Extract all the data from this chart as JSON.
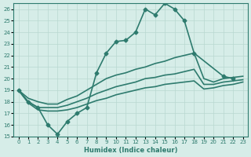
{
  "xlabel": "Humidex (Indice chaleur)",
  "xlim": [
    -0.5,
    23.5
  ],
  "ylim": [
    15,
    26.5
  ],
  "yticks": [
    15,
    16,
    17,
    18,
    19,
    20,
    21,
    22,
    23,
    24,
    25,
    26
  ],
  "xticks": [
    0,
    1,
    2,
    3,
    4,
    5,
    6,
    7,
    8,
    9,
    10,
    11,
    12,
    13,
    14,
    15,
    16,
    17,
    18,
    19,
    20,
    21,
    22,
    23
  ],
  "bg_color": "#d6ede8",
  "grid_color": "#b8d8d0",
  "line_color": "#2e7b6e",
  "lines": [
    {
      "x": [
        0,
        1,
        2,
        3,
        4,
        5,
        6,
        7,
        8,
        9,
        10,
        11,
        12,
        13,
        14,
        15,
        16,
        17,
        18,
        21,
        22
      ],
      "y": [
        19,
        18,
        17.5,
        16,
        15.2,
        16.3,
        17.0,
        17.5,
        20.5,
        22.2,
        23.2,
        23.3,
        24.0,
        26.0,
        25.5,
        26.5,
        26.0,
        25.0,
        22.2,
        20.2,
        20.0
      ],
      "marker": "D",
      "markersize": 2.5,
      "linewidth": 1.2
    },
    {
      "x": [
        0,
        1,
        2,
        3,
        4,
        5,
        6,
        7,
        8,
        9,
        10,
        11,
        12,
        13,
        14,
        15,
        16,
        17,
        18,
        19,
        20,
        21,
        22,
        23
      ],
      "y": [
        19.0,
        18.3,
        18.0,
        17.8,
        17.8,
        18.2,
        18.5,
        19.0,
        19.5,
        20.0,
        20.3,
        20.5,
        20.8,
        21.0,
        21.3,
        21.5,
        21.8,
        22.0,
        22.2,
        20.0,
        19.7,
        20.0,
        20.1,
        20.2
      ],
      "marker": null,
      "linewidth": 1.2
    },
    {
      "x": [
        0,
        1,
        2,
        3,
        4,
        5,
        6,
        7,
        8,
        9,
        10,
        11,
        12,
        13,
        14,
        15,
        16,
        17,
        18,
        19,
        20,
        21,
        22,
        23
      ],
      "y": [
        19.0,
        18.0,
        17.5,
        17.5,
        17.5,
        17.7,
        18.0,
        18.3,
        18.7,
        19.0,
        19.3,
        19.5,
        19.7,
        20.0,
        20.1,
        20.3,
        20.4,
        20.6,
        20.8,
        19.5,
        19.5,
        19.7,
        19.8,
        19.9
      ],
      "marker": null,
      "linewidth": 1.2
    },
    {
      "x": [
        0,
        1,
        2,
        3,
        4,
        5,
        6,
        7,
        8,
        9,
        10,
        11,
        12,
        13,
        14,
        15,
        16,
        17,
        18,
        19,
        20,
        21,
        22,
        23
      ],
      "y": [
        19.0,
        17.9,
        17.3,
        17.2,
        17.2,
        17.3,
        17.5,
        17.8,
        18.1,
        18.3,
        18.6,
        18.8,
        19.0,
        19.2,
        19.3,
        19.5,
        19.6,
        19.7,
        19.8,
        19.1,
        19.2,
        19.4,
        19.5,
        19.7
      ],
      "marker": null,
      "linewidth": 1.2
    }
  ]
}
